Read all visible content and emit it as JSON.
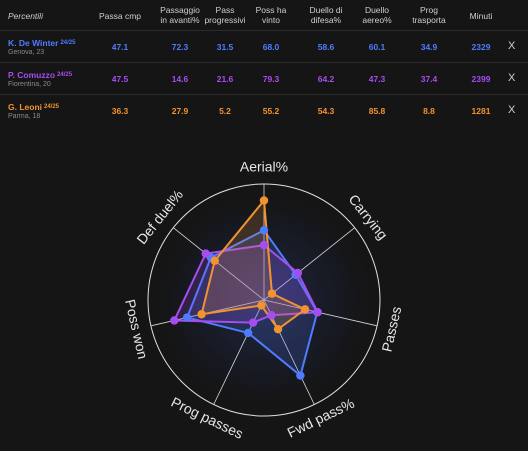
{
  "table": {
    "header": {
      "first": "Percentili",
      "cols": [
        "Passa cmp",
        "Passaggio\nin avanti%",
        "Pass\nprogressivi",
        "Poss ha\nvinto",
        "Duello di\ndifesa%",
        "Duello\naereo%",
        "Prog\ntrasporta",
        "Minuti"
      ]
    },
    "rows": [
      {
        "name": "K. De Winter",
        "season": "24/25",
        "sub": "Genova, 23",
        "values": [
          "47.1",
          "72.3",
          "31.5",
          "68.0",
          "58.6",
          "60.1",
          "34.9",
          "2329"
        ],
        "color": "#4f7cff",
        "remove": "X"
      },
      {
        "name": "P. Comuzzo",
        "season": "24/25",
        "sub": "Fiorentina, 20",
        "values": [
          "47.5",
          "14.6",
          "21.6",
          "79.3",
          "64.2",
          "47.3",
          "37.4",
          "2399"
        ],
        "color": "#a64df0",
        "remove": "X"
      },
      {
        "name": "G. Leoni",
        "season": "24/25",
        "sub": "Parma, 18",
        "values": [
          "36.3",
          "27.9",
          "5.2",
          "55.2",
          "54.3",
          "85.8",
          "8.8",
          "1281"
        ],
        "color": "#f29330",
        "remove": "X"
      }
    ]
  },
  "radar": {
    "axes": [
      "Aerial%",
      "Carrying",
      "Passes",
      "Fwd pass%",
      "Prog passes",
      "Poss won",
      "Def duel%"
    ],
    "series": [
      {
        "color": "#4f7cff",
        "values": [
          60.1,
          34.9,
          47.1,
          72.3,
          31.5,
          68.0,
          58.6
        ]
      },
      {
        "color": "#a64df0",
        "values": [
          47.3,
          37.4,
          47.5,
          14.6,
          21.6,
          79.3,
          64.2
        ]
      },
      {
        "color": "#f29330",
        "values": [
          85.8,
          8.8,
          36.3,
          27.9,
          5.2,
          55.2,
          54.3
        ]
      }
    ]
  }
}
